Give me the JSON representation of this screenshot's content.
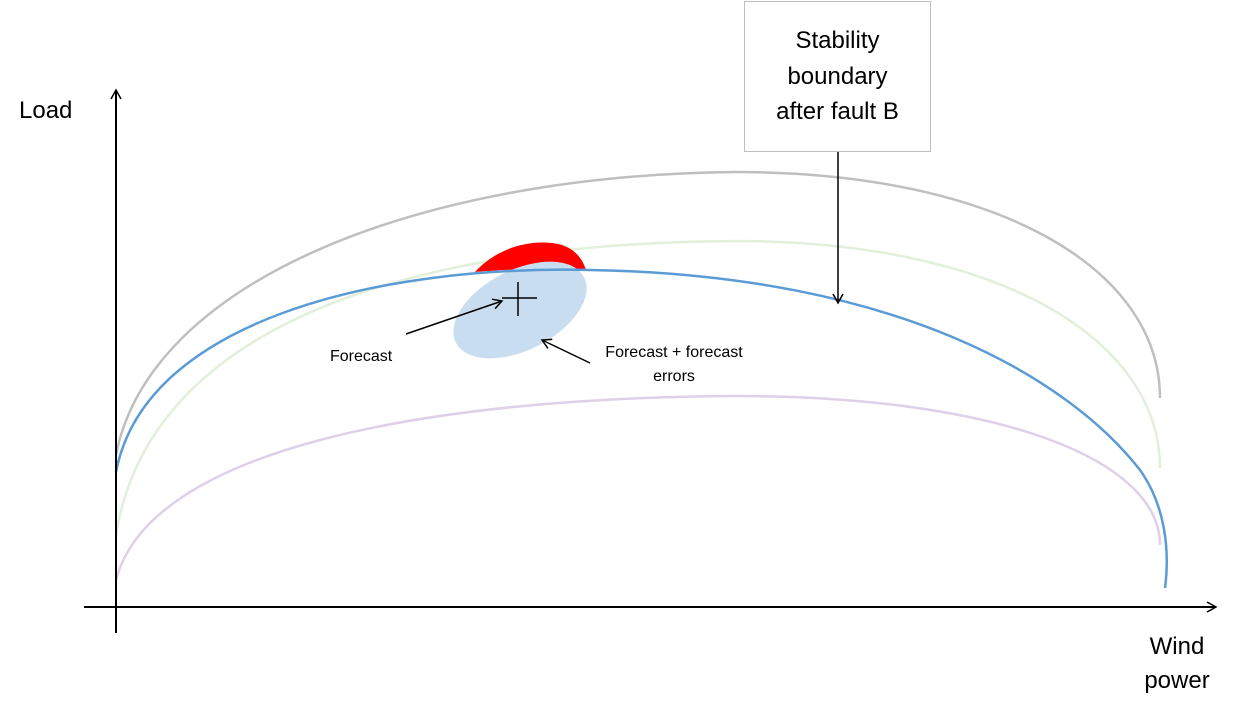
{
  "axes": {
    "y_label": "Load",
    "x_label": "Wind\npower"
  },
  "callout": {
    "text": "Stability\nboundary\nafter fault B"
  },
  "annotations": {
    "forecast": "Forecast",
    "forecast_errors": "Forecast + forecast\nerrors"
  },
  "colors": {
    "axis": "#000000",
    "boundary_gray": "#bfbfbf",
    "boundary_green": "#e2efda",
    "boundary_blue": "#5b9bd5",
    "boundary_purple": "#ddd0e8",
    "uncertainty_region": "#c9ddf0",
    "violation_region": "#ff0000"
  }
}
